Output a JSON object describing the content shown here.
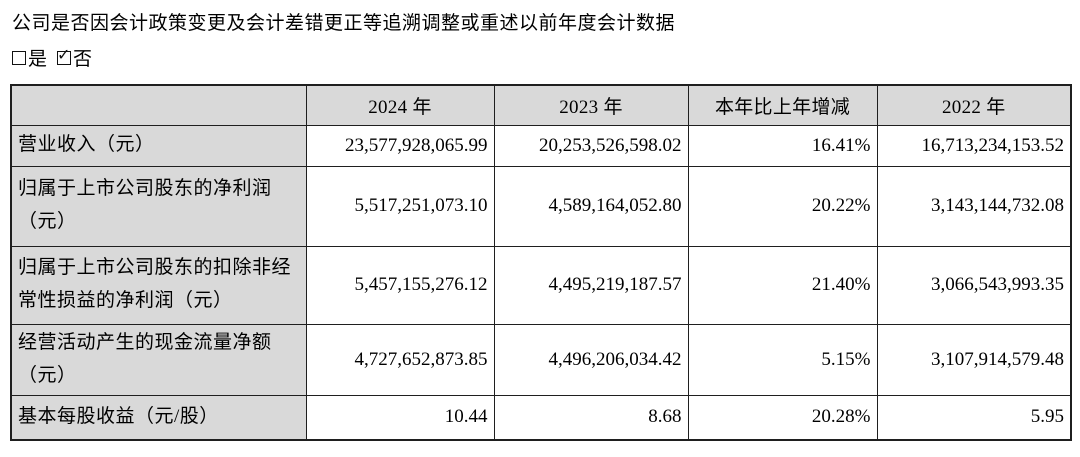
{
  "question": "公司是否因会计政策变更及会计差错更正等追溯调整或重述以前年度会计数据",
  "restatement_options": {
    "yes_label": "是",
    "no_label": "否",
    "yes_checked": false,
    "no_checked": true,
    "check_glyph": "✓"
  },
  "table": {
    "columns": [
      "",
      "2024 年",
      "2023 年",
      "本年比上年增减",
      "2022 年"
    ],
    "rows": [
      {
        "label": "营业收入（元）",
        "values": [
          "23,577,928,065.99",
          "20,253,526,598.02",
          "16.41%",
          "16,713,234,153.52"
        ]
      },
      {
        "label": "归属于上市公司股东的净利润（元）",
        "values": [
          "5,517,251,073.10",
          "4,589,164,052.80",
          "20.22%",
          "3,143,144,732.08"
        ]
      },
      {
        "label": "归属于上市公司股东的扣除非经常性损益的净利润（元）",
        "values": [
          "5,457,155,276.12",
          "4,495,219,187.57",
          "21.40%",
          "3,066,543,993.35"
        ]
      },
      {
        "label": "经营活动产生的现金流量净额（元）",
        "values": [
          "4,727,652,873.85",
          "4,496,206,034.42",
          "5.15%",
          "3,107,914,579.48"
        ]
      },
      {
        "label": "基本每股收益（元/股）",
        "values": [
          "10.44",
          "8.68",
          "20.28%",
          "5.95"
        ]
      }
    ]
  },
  "colors": {
    "header_bg": "#d9d9d9",
    "border": "#1f1f1f",
    "text": "#000000"
  }
}
